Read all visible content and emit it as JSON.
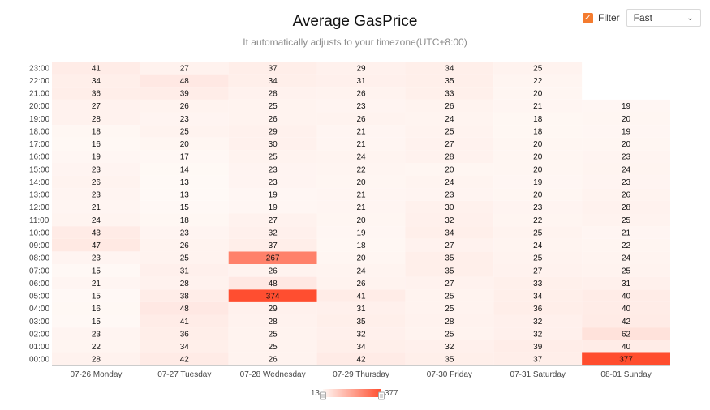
{
  "header": {
    "title": "Average GasPrice",
    "subtitle": "It automatically adjusts to your timezone(UTC+8:00)"
  },
  "filter": {
    "checked": true,
    "label": "Filter",
    "select_value": "Fast"
  },
  "colors": {
    "low": "#fff9f6",
    "high": "#ff4d2e",
    "accent": "#f47b2e"
  },
  "chart_data": {
    "type": "heatmap",
    "title": "Average GasPrice",
    "subtitle": "It automatically adjusts to your timezone(UTC+8:00)",
    "x_categories": [
      "07-26 Monday",
      "07-27 Tuesday",
      "07-28 Wednesday",
      "07-29 Thursday",
      "07-30 Friday",
      "07-31 Saturday",
      "08-01 Sunday"
    ],
    "y_categories": [
      "00:00",
      "01:00",
      "02:00",
      "03:00",
      "04:00",
      "05:00",
      "06:00",
      "07:00",
      "08:00",
      "09:00",
      "10:00",
      "11:00",
      "12:00",
      "13:00",
      "14:00",
      "15:00",
      "16:00",
      "17:00",
      "18:00",
      "19:00",
      "20:00",
      "21:00",
      "22:00",
      "23:00"
    ],
    "values": [
      [
        28,
        42,
        26,
        42,
        35,
        37,
        377
      ],
      [
        22,
        34,
        25,
        34,
        32,
        39,
        40
      ],
      [
        23,
        36,
        25,
        32,
        25,
        32,
        62
      ],
      [
        15,
        41,
        28,
        35,
        28,
        32,
        42
      ],
      [
        16,
        48,
        29,
        31,
        25,
        36,
        40
      ],
      [
        15,
        38,
        374,
        41,
        25,
        34,
        40
      ],
      [
        21,
        28,
        48,
        26,
        27,
        33,
        31
      ],
      [
        15,
        31,
        26,
        24,
        35,
        27,
        25
      ],
      [
        23,
        25,
        267,
        20,
        35,
        25,
        24
      ],
      [
        47,
        26,
        37,
        18,
        27,
        24,
        22
      ],
      [
        43,
        23,
        32,
        19,
        34,
        25,
        21
      ],
      [
        24,
        18,
        27,
        20,
        32,
        22,
        25
      ],
      [
        21,
        15,
        19,
        21,
        30,
        23,
        28
      ],
      [
        23,
        13,
        19,
        21,
        23,
        20,
        26
      ],
      [
        26,
        13,
        23,
        20,
        24,
        19,
        23
      ],
      [
        23,
        14,
        23,
        22,
        20,
        20,
        24
      ],
      [
        19,
        17,
        25,
        24,
        28,
        20,
        23
      ],
      [
        16,
        20,
        30,
        21,
        27,
        20,
        20
      ],
      [
        18,
        25,
        29,
        21,
        25,
        18,
        19
      ],
      [
        28,
        23,
        26,
        26,
        24,
        18,
        20
      ],
      [
        27,
        26,
        25,
        23,
        26,
        21,
        19
      ],
      [
        36,
        39,
        28,
        26,
        33,
        20,
        null
      ],
      [
        34,
        48,
        34,
        31,
        35,
        22,
        null
      ],
      [
        41,
        27,
        37,
        29,
        34,
        25,
        null
      ]
    ],
    "visual_map": {
      "min": 13,
      "max": 377
    }
  }
}
